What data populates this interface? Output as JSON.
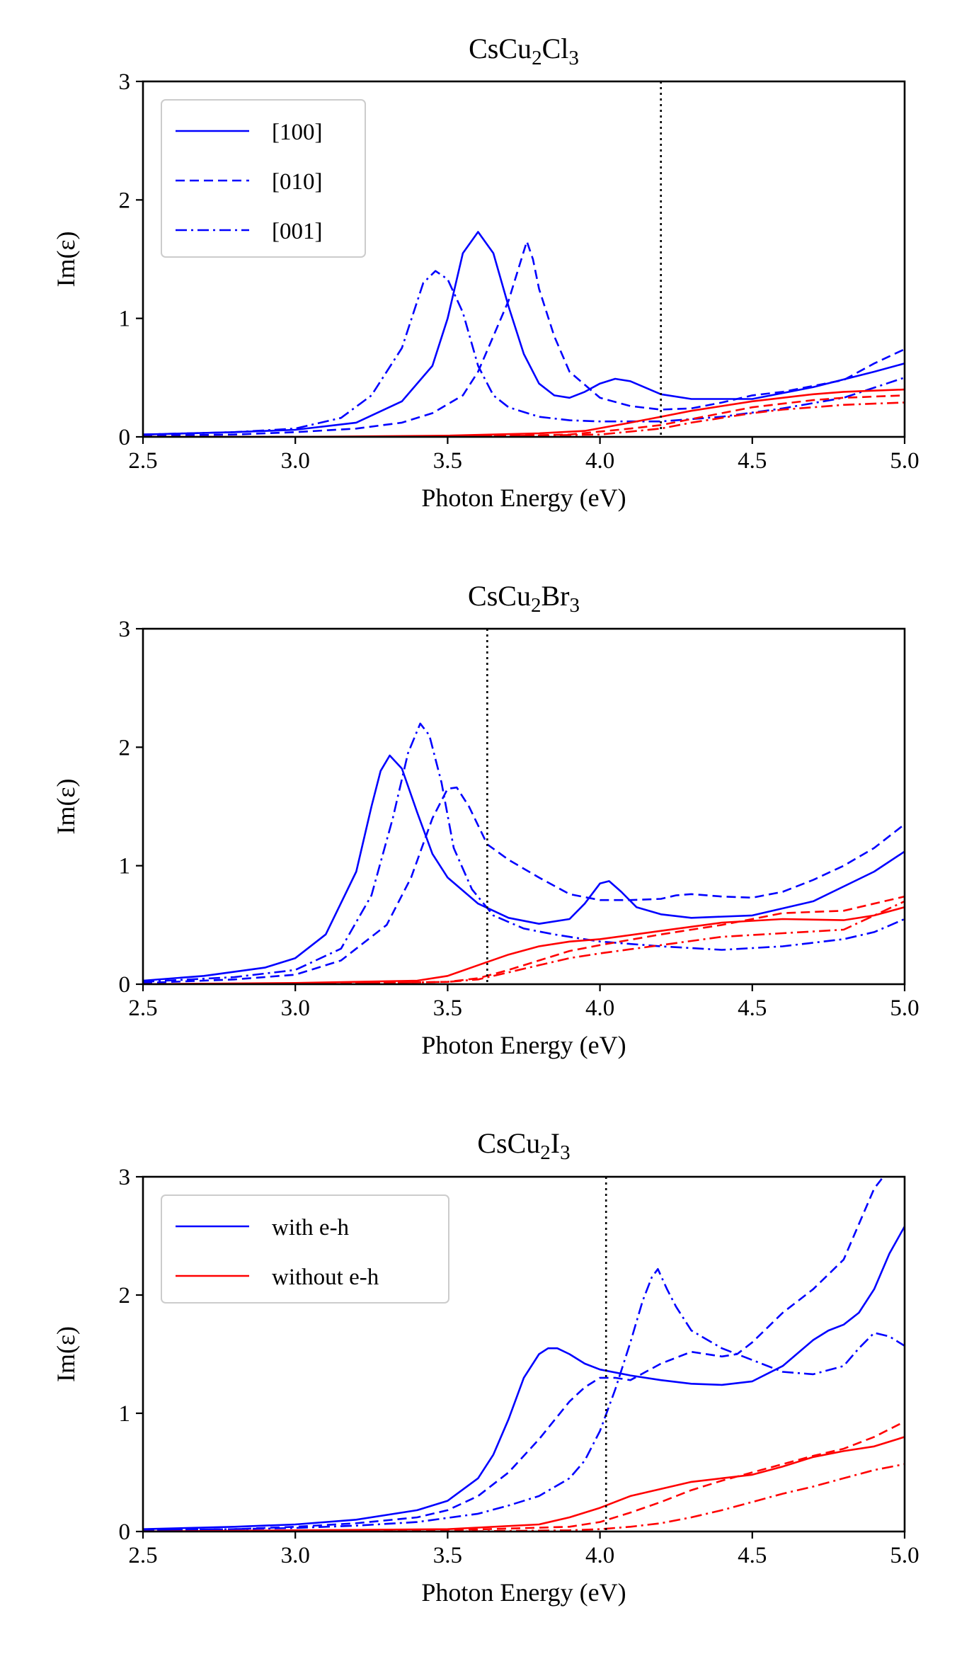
{
  "chart_data": [
    {
      "type": "line",
      "title_parts": [
        "CsCu",
        "2",
        "Cl",
        "3"
      ],
      "xlabel": "Photon Energy (eV)",
      "ylabel": "Im(ε)",
      "xlim": [
        2.5,
        5.0
      ],
      "ylim": [
        0,
        3
      ],
      "xticks": [
        "2.5",
        "3.0",
        "3.5",
        "4.0",
        "4.5",
        "5.0"
      ],
      "yticks": [
        "0",
        "1",
        "2",
        "3"
      ],
      "vline_x": 4.2,
      "legend": {
        "position": "top-left",
        "entries": [
          {
            "label": "[100]",
            "color": "#0000ff",
            "style": "solid"
          },
          {
            "label": "[010]",
            "color": "#0000ff",
            "style": "dashed"
          },
          {
            "label": "[001]",
            "color": "#0000ff",
            "style": "dashdot"
          }
        ]
      },
      "series": [
        {
          "name": "[100] with e-h",
          "color": "#0000ff",
          "style": "solid",
          "x": [
            2.5,
            2.8,
            3.0,
            3.2,
            3.35,
            3.45,
            3.5,
            3.55,
            3.6,
            3.65,
            3.7,
            3.75,
            3.8,
            3.85,
            3.9,
            3.95,
            4.0,
            4.05,
            4.1,
            4.2,
            4.3,
            4.5,
            4.7,
            4.9,
            5.0
          ],
          "y": [
            0.02,
            0.04,
            0.06,
            0.12,
            0.3,
            0.6,
            1.0,
            1.55,
            1.73,
            1.55,
            1.1,
            0.7,
            0.45,
            0.35,
            0.33,
            0.38,
            0.45,
            0.49,
            0.47,
            0.36,
            0.32,
            0.32,
            0.42,
            0.55,
            0.62
          ]
        },
        {
          "name": "[010] with e-h",
          "color": "#0000ff",
          "style": "dashed",
          "x": [
            2.5,
            2.8,
            3.0,
            3.2,
            3.35,
            3.45,
            3.55,
            3.6,
            3.65,
            3.7,
            3.73,
            3.76,
            3.78,
            3.8,
            3.85,
            3.9,
            4.0,
            4.1,
            4.2,
            4.3,
            4.4,
            4.5,
            4.6,
            4.8,
            4.9,
            5.0
          ],
          "y": [
            0.01,
            0.02,
            0.04,
            0.07,
            0.12,
            0.2,
            0.35,
            0.55,
            0.85,
            1.15,
            1.4,
            1.65,
            1.5,
            1.25,
            0.85,
            0.55,
            0.33,
            0.26,
            0.23,
            0.24,
            0.29,
            0.35,
            0.38,
            0.48,
            0.62,
            0.74
          ]
        },
        {
          "name": "[001] with e-h",
          "color": "#0000ff",
          "style": "dashdot",
          "x": [
            2.5,
            2.8,
            3.0,
            3.15,
            3.25,
            3.35,
            3.42,
            3.46,
            3.5,
            3.55,
            3.6,
            3.65,
            3.7,
            3.8,
            3.9,
            4.0,
            4.2,
            4.4,
            4.6,
            4.8,
            5.0
          ],
          "y": [
            0.02,
            0.04,
            0.07,
            0.16,
            0.35,
            0.75,
            1.3,
            1.4,
            1.33,
            1.05,
            0.6,
            0.35,
            0.25,
            0.17,
            0.14,
            0.13,
            0.13,
            0.17,
            0.24,
            0.33,
            0.5
          ]
        },
        {
          "name": "[100] without e-h",
          "color": "#ff0000",
          "style": "solid",
          "x": [
            2.5,
            3.0,
            3.5,
            3.8,
            3.95,
            4.1,
            4.2,
            4.3,
            4.4,
            4.5,
            4.6,
            4.7,
            4.8,
            4.9,
            5.0
          ],
          "y": [
            0.0,
            0.0,
            0.01,
            0.03,
            0.05,
            0.12,
            0.17,
            0.22,
            0.26,
            0.3,
            0.33,
            0.36,
            0.38,
            0.39,
            0.4
          ]
        },
        {
          "name": "[010] without e-h",
          "color": "#ff0000",
          "style": "dashed",
          "x": [
            2.5,
            3.0,
            3.5,
            3.9,
            4.1,
            4.2,
            4.3,
            4.4,
            4.5,
            4.6,
            4.7,
            4.8,
            4.9,
            5.0
          ],
          "y": [
            0.0,
            0.0,
            0.0,
            0.02,
            0.07,
            0.1,
            0.15,
            0.2,
            0.25,
            0.28,
            0.31,
            0.33,
            0.34,
            0.35
          ]
        },
        {
          "name": "[001] without e-h",
          "color": "#ff0000",
          "style": "dashdot",
          "x": [
            2.5,
            3.0,
            3.5,
            4.0,
            4.2,
            4.3,
            4.4,
            4.5,
            4.6,
            4.7,
            4.8,
            4.9,
            5.0
          ],
          "y": [
            0.0,
            0.0,
            0.0,
            0.02,
            0.07,
            0.12,
            0.16,
            0.2,
            0.23,
            0.25,
            0.27,
            0.28,
            0.29
          ]
        }
      ]
    },
    {
      "type": "line",
      "title_parts": [
        "CsCu",
        "2",
        "Br",
        "3"
      ],
      "xlabel": "Photon Energy (eV)",
      "ylabel": "Im(ε)",
      "xlim": [
        2.5,
        5.0
      ],
      "ylim": [
        0,
        3
      ],
      "xticks": [
        "2.5",
        "3.0",
        "3.5",
        "4.0",
        "4.5",
        "5.0"
      ],
      "yticks": [
        "0",
        "1",
        "2",
        "3"
      ],
      "vline_x": 3.63,
      "legend": null,
      "series": [
        {
          "name": "[100] with e-h",
          "color": "#0000ff",
          "style": "solid",
          "x": [
            2.5,
            2.7,
            2.9,
            3.0,
            3.1,
            3.2,
            3.25,
            3.28,
            3.31,
            3.35,
            3.4,
            3.45,
            3.5,
            3.6,
            3.7,
            3.8,
            3.9,
            3.95,
            4.0,
            4.03,
            4.07,
            4.12,
            4.2,
            4.3,
            4.5,
            4.7,
            4.9,
            5.0
          ],
          "y": [
            0.03,
            0.07,
            0.14,
            0.22,
            0.42,
            0.95,
            1.5,
            1.8,
            1.93,
            1.82,
            1.45,
            1.1,
            0.9,
            0.68,
            0.56,
            0.51,
            0.55,
            0.68,
            0.85,
            0.87,
            0.78,
            0.65,
            0.59,
            0.56,
            0.58,
            0.7,
            0.95,
            1.12
          ]
        },
        {
          "name": "[010] with e-h",
          "color": "#0000ff",
          "style": "dashed",
          "x": [
            2.5,
            2.8,
            3.0,
            3.15,
            3.3,
            3.38,
            3.45,
            3.5,
            3.53,
            3.57,
            3.63,
            3.7,
            3.8,
            3.9,
            4.0,
            4.1,
            4.2,
            4.25,
            4.3,
            4.4,
            4.5,
            4.6,
            4.7,
            4.8,
            4.9,
            5.0
          ],
          "y": [
            0.01,
            0.04,
            0.08,
            0.2,
            0.5,
            0.9,
            1.4,
            1.65,
            1.66,
            1.5,
            1.18,
            1.05,
            0.9,
            0.76,
            0.71,
            0.71,
            0.72,
            0.75,
            0.76,
            0.74,
            0.73,
            0.78,
            0.88,
            1.0,
            1.15,
            1.35
          ]
        },
        {
          "name": "[001] with e-h",
          "color": "#0000ff",
          "style": "dashdot",
          "x": [
            2.5,
            2.8,
            3.0,
            3.15,
            3.25,
            3.32,
            3.37,
            3.41,
            3.44,
            3.48,
            3.52,
            3.58,
            3.65,
            3.75,
            3.85,
            4.0,
            4.2,
            4.4,
            4.6,
            4.8,
            4.9,
            5.0
          ],
          "y": [
            0.02,
            0.06,
            0.12,
            0.3,
            0.75,
            1.4,
            1.95,
            2.2,
            2.1,
            1.7,
            1.15,
            0.8,
            0.58,
            0.47,
            0.42,
            0.36,
            0.32,
            0.29,
            0.32,
            0.38,
            0.44,
            0.55
          ]
        },
        {
          "name": "[100] without e-h",
          "color": "#ff0000",
          "style": "solid",
          "x": [
            2.5,
            3.0,
            3.4,
            3.5,
            3.6,
            3.7,
            3.8,
            3.9,
            4.0,
            4.2,
            4.4,
            4.6,
            4.8,
            4.9,
            5.0
          ],
          "y": [
            0.0,
            0.01,
            0.03,
            0.07,
            0.16,
            0.25,
            0.32,
            0.36,
            0.38,
            0.45,
            0.52,
            0.55,
            0.54,
            0.58,
            0.65
          ]
        },
        {
          "name": "[010] without e-h",
          "color": "#ff0000",
          "style": "dashed",
          "x": [
            2.5,
            3.0,
            3.5,
            3.6,
            3.7,
            3.8,
            3.9,
            4.0,
            4.2,
            4.4,
            4.5,
            4.6,
            4.8,
            4.9,
            5.0
          ],
          "y": [
            0.0,
            0.0,
            0.02,
            0.05,
            0.12,
            0.2,
            0.28,
            0.33,
            0.42,
            0.5,
            0.55,
            0.6,
            0.62,
            0.68,
            0.74
          ]
        },
        {
          "name": "[001] without e-h",
          "color": "#ff0000",
          "style": "dashdot",
          "x": [
            2.5,
            3.0,
            3.5,
            3.6,
            3.7,
            3.8,
            3.9,
            4.0,
            4.2,
            4.4,
            4.6,
            4.8,
            4.9,
            5.0
          ],
          "y": [
            0.0,
            0.0,
            0.02,
            0.04,
            0.1,
            0.16,
            0.22,
            0.26,
            0.33,
            0.4,
            0.43,
            0.46,
            0.58,
            0.7
          ]
        }
      ]
    },
    {
      "type": "line",
      "title_parts": [
        "CsCu",
        "2",
        "I",
        "3"
      ],
      "xlabel": "Photon Energy (eV)",
      "ylabel": "Im(ε)",
      "xlim": [
        2.5,
        5.0
      ],
      "ylim": [
        0,
        3
      ],
      "xticks": [
        "2.5",
        "3.0",
        "3.5",
        "4.0",
        "4.5",
        "5.0"
      ],
      "yticks": [
        "0",
        "1",
        "2",
        "3"
      ],
      "vline_x": 4.02,
      "legend": {
        "position": "top-left",
        "entries": [
          {
            "label": "with e-h",
            "color": "#0000ff",
            "style": "solid"
          },
          {
            "label": "without e-h",
            "color": "#ff0000",
            "style": "solid"
          }
        ]
      },
      "series": [
        {
          "name": "[100] with e-h",
          "color": "#0000ff",
          "style": "solid",
          "x": [
            2.5,
            2.8,
            3.0,
            3.2,
            3.4,
            3.5,
            3.6,
            3.65,
            3.7,
            3.75,
            3.8,
            3.83,
            3.86,
            3.9,
            3.95,
            4.0,
            4.1,
            4.2,
            4.3,
            4.4,
            4.5,
            4.6,
            4.7,
            4.75,
            4.8,
            4.85,
            4.9,
            4.95,
            5.0
          ],
          "y": [
            0.02,
            0.04,
            0.06,
            0.1,
            0.18,
            0.26,
            0.45,
            0.65,
            0.95,
            1.3,
            1.5,
            1.55,
            1.55,
            1.5,
            1.42,
            1.37,
            1.32,
            1.28,
            1.25,
            1.24,
            1.27,
            1.4,
            1.62,
            1.7,
            1.75,
            1.85,
            2.05,
            2.35,
            2.58
          ]
        },
        {
          "name": "[010] with e-h",
          "color": "#0000ff",
          "style": "dashed",
          "x": [
            2.5,
            2.8,
            3.0,
            3.2,
            3.4,
            3.5,
            3.6,
            3.7,
            3.8,
            3.9,
            3.95,
            4.0,
            4.05,
            4.1,
            4.2,
            4.3,
            4.4,
            4.45,
            4.5,
            4.6,
            4.7,
            4.8,
            4.85,
            4.9,
            4.93
          ],
          "y": [
            0.01,
            0.02,
            0.04,
            0.07,
            0.12,
            0.18,
            0.3,
            0.5,
            0.78,
            1.1,
            1.22,
            1.3,
            1.3,
            1.28,
            1.42,
            1.52,
            1.48,
            1.5,
            1.6,
            1.85,
            2.05,
            2.3,
            2.6,
            2.9,
            3.0
          ]
        },
        {
          "name": "[001] with e-h",
          "color": "#0000ff",
          "style": "dashdot",
          "x": [
            2.5,
            2.8,
            3.0,
            3.2,
            3.4,
            3.6,
            3.7,
            3.8,
            3.9,
            3.95,
            4.0,
            4.05,
            4.1,
            4.14,
            4.17,
            4.19,
            4.22,
            4.25,
            4.3,
            4.4,
            4.5,
            4.6,
            4.7,
            4.8,
            4.85,
            4.9,
            4.95,
            5.0
          ],
          "y": [
            0.01,
            0.02,
            0.03,
            0.05,
            0.08,
            0.15,
            0.22,
            0.3,
            0.45,
            0.6,
            0.85,
            1.2,
            1.6,
            1.95,
            2.15,
            2.22,
            2.05,
            1.9,
            1.7,
            1.55,
            1.45,
            1.35,
            1.33,
            1.4,
            1.55,
            1.68,
            1.65,
            1.57
          ]
        },
        {
          "name": "[100] without e-h",
          "color": "#ff0000",
          "style": "solid",
          "x": [
            2.5,
            3.0,
            3.5,
            3.8,
            3.9,
            4.0,
            4.1,
            4.2,
            4.3,
            4.4,
            4.5,
            4.6,
            4.7,
            4.8,
            4.9,
            5.0
          ],
          "y": [
            0.0,
            0.01,
            0.02,
            0.06,
            0.12,
            0.2,
            0.3,
            0.36,
            0.42,
            0.45,
            0.48,
            0.55,
            0.63,
            0.68,
            0.72,
            0.8
          ]
        },
        {
          "name": "[010] without e-h",
          "color": "#ff0000",
          "style": "dashed",
          "x": [
            2.5,
            3.0,
            3.5,
            3.9,
            4.0,
            4.1,
            4.2,
            4.3,
            4.4,
            4.5,
            4.6,
            4.7,
            4.8,
            4.9,
            5.0
          ],
          "y": [
            0.0,
            0.0,
            0.01,
            0.04,
            0.08,
            0.16,
            0.25,
            0.35,
            0.43,
            0.5,
            0.57,
            0.64,
            0.7,
            0.8,
            0.93
          ]
        },
        {
          "name": "[001] without e-h",
          "color": "#ff0000",
          "style": "dashdot",
          "x": [
            2.5,
            3.0,
            3.5,
            3.9,
            4.0,
            4.1,
            4.2,
            4.3,
            4.4,
            4.5,
            4.6,
            4.7,
            4.8,
            4.9,
            5.0
          ],
          "y": [
            0.0,
            0.0,
            0.0,
            0.01,
            0.02,
            0.04,
            0.07,
            0.12,
            0.18,
            0.25,
            0.32,
            0.38,
            0.45,
            0.52,
            0.57
          ]
        }
      ]
    }
  ]
}
